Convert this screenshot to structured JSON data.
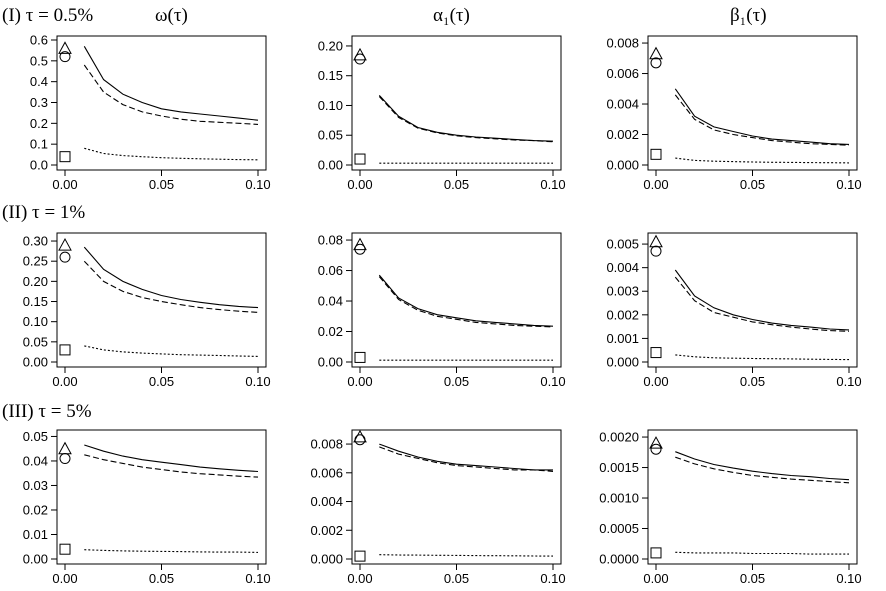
{
  "figure": {
    "row_labels": [
      "(I) τ = 0.5%",
      "(II) τ = 1%",
      "(III) τ = 5%"
    ],
    "column_titles": [
      "ω(τ)",
      "α₁(τ)",
      "β₁(τ)"
    ]
  },
  "chart_data": [
    {
      "type": "line",
      "row": 0,
      "col": 0,
      "title": "ω(τ)",
      "x_ticks": [
        "0.00",
        "0.05",
        "0.10"
      ],
      "xlim": [
        0,
        0.1
      ],
      "y_ticks": [
        "0.0",
        "0.1",
        "0.2",
        "0.3",
        "0.4",
        "0.5",
        "0.6"
      ],
      "ylim": [
        0,
        0.6
      ],
      "x": [
        0.01,
        0.02,
        0.03,
        0.04,
        0.05,
        0.06,
        0.07,
        0.08,
        0.09,
        0.1
      ],
      "series": [
        {
          "name": "solid",
          "style": "solid",
          "values": [
            0.57,
            0.41,
            0.34,
            0.3,
            0.27,
            0.255,
            0.245,
            0.235,
            0.225,
            0.215
          ]
        },
        {
          "name": "dashed",
          "style": "dashed",
          "values": [
            0.48,
            0.35,
            0.29,
            0.255,
            0.235,
            0.22,
            0.21,
            0.205,
            0.2,
            0.195
          ]
        },
        {
          "name": "dotted",
          "style": "dotted",
          "values": [
            0.08,
            0.055,
            0.045,
            0.04,
            0.035,
            0.032,
            0.03,
            0.028,
            0.026,
            0.025
          ]
        }
      ],
      "markers": [
        {
          "shape": "triangle",
          "x": 0,
          "y": 0.56
        },
        {
          "shape": "circle",
          "x": 0,
          "y": 0.52
        },
        {
          "shape": "square",
          "x": 0,
          "y": 0.04
        }
      ]
    },
    {
      "type": "line",
      "row": 0,
      "col": 1,
      "title": "α₁(τ)",
      "x_ticks": [
        "0.00",
        "0.05",
        "0.10"
      ],
      "xlim": [
        0,
        0.1
      ],
      "y_ticks": [
        "0.00",
        "0.05",
        "0.10",
        "0.15",
        "0.20"
      ],
      "ylim": [
        0,
        0.21
      ],
      "x": [
        0.01,
        0.02,
        0.03,
        0.04,
        0.05,
        0.06,
        0.07,
        0.08,
        0.09,
        0.1
      ],
      "series": [
        {
          "name": "solid",
          "style": "solid",
          "values": [
            0.117,
            0.082,
            0.063,
            0.055,
            0.05,
            0.047,
            0.045,
            0.043,
            0.041,
            0.04
          ]
        },
        {
          "name": "dashed",
          "style": "dashed",
          "values": [
            0.115,
            0.08,
            0.062,
            0.054,
            0.049,
            0.046,
            0.044,
            0.042,
            0.041,
            0.039
          ]
        },
        {
          "name": "dotted",
          "style": "dotted",
          "values": [
            0.003,
            0.003,
            0.003,
            0.003,
            0.003,
            0.003,
            0.003,
            0.003,
            0.003,
            0.003
          ]
        }
      ],
      "markers": [
        {
          "shape": "triangle",
          "x": 0,
          "y": 0.185
        },
        {
          "shape": "circle",
          "x": 0,
          "y": 0.178
        },
        {
          "shape": "square",
          "x": 0,
          "y": 0.01
        }
      ]
    },
    {
      "type": "line",
      "row": 0,
      "col": 2,
      "title": "β₁(τ)",
      "x_ticks": [
        "0.00",
        "0.05",
        "0.10"
      ],
      "xlim": [
        0,
        0.1
      ],
      "y_ticks": [
        "0.000",
        "0.002",
        "0.004",
        "0.006",
        "0.008"
      ],
      "ylim": [
        0,
        0.0082
      ],
      "x": [
        0.01,
        0.02,
        0.03,
        0.04,
        0.05,
        0.06,
        0.07,
        0.08,
        0.09,
        0.1
      ],
      "series": [
        {
          "name": "solid",
          "style": "solid",
          "values": [
            0.005,
            0.0032,
            0.0025,
            0.0022,
            0.0019,
            0.0017,
            0.0016,
            0.0015,
            0.0014,
            0.00135
          ]
        },
        {
          "name": "dashed",
          "style": "dashed",
          "values": [
            0.0046,
            0.003,
            0.0023,
            0.002,
            0.0018,
            0.0016,
            0.0015,
            0.0014,
            0.00135,
            0.0013
          ]
        },
        {
          "name": "dotted",
          "style": "dotted",
          "values": [
            0.00045,
            0.0003,
            0.00025,
            0.00022,
            0.0002,
            0.00018,
            0.00017,
            0.00016,
            0.00015,
            0.00014
          ]
        }
      ],
      "markers": [
        {
          "shape": "triangle",
          "x": 0,
          "y": 0.0073
        },
        {
          "shape": "circle",
          "x": 0,
          "y": 0.0067
        },
        {
          "shape": "square",
          "x": 0,
          "y": 0.0007
        }
      ]
    },
    {
      "type": "line",
      "row": 1,
      "col": 0,
      "title": "ω(τ)",
      "x_ticks": [
        "0.00",
        "0.05",
        "0.10"
      ],
      "xlim": [
        0,
        0.1
      ],
      "y_ticks": [
        "0.00",
        "0.05",
        "0.10",
        "0.15",
        "0.20",
        "0.25",
        "0.30"
      ],
      "ylim": [
        0,
        0.31
      ],
      "x": [
        0.01,
        0.02,
        0.03,
        0.04,
        0.05,
        0.06,
        0.07,
        0.08,
        0.09,
        0.1
      ],
      "series": [
        {
          "name": "solid",
          "style": "solid",
          "values": [
            0.285,
            0.23,
            0.2,
            0.18,
            0.165,
            0.155,
            0.148,
            0.142,
            0.138,
            0.135
          ]
        },
        {
          "name": "dashed",
          "style": "dashed",
          "values": [
            0.25,
            0.2,
            0.175,
            0.16,
            0.15,
            0.142,
            0.135,
            0.13,
            0.126,
            0.123
          ]
        },
        {
          "name": "dotted",
          "style": "dotted",
          "values": [
            0.04,
            0.03,
            0.025,
            0.022,
            0.02,
            0.018,
            0.017,
            0.016,
            0.015,
            0.014
          ]
        }
      ],
      "markers": [
        {
          "shape": "triangle",
          "x": 0,
          "y": 0.29
        },
        {
          "shape": "circle",
          "x": 0,
          "y": 0.26
        },
        {
          "shape": "square",
          "x": 0,
          "y": 0.03
        }
      ]
    },
    {
      "type": "line",
      "row": 1,
      "col": 1,
      "title": "α₁(τ)",
      "x_ticks": [
        "0.00",
        "0.05",
        "0.10"
      ],
      "xlim": [
        0,
        0.1
      ],
      "y_ticks": [
        "0.00",
        "0.02",
        "0.04",
        "0.06",
        "0.08"
      ],
      "ylim": [
        0,
        0.082
      ],
      "x": [
        0.01,
        0.02,
        0.03,
        0.04,
        0.05,
        0.06,
        0.07,
        0.08,
        0.09,
        0.1
      ],
      "series": [
        {
          "name": "solid",
          "style": "solid",
          "values": [
            0.057,
            0.042,
            0.035,
            0.031,
            0.029,
            0.027,
            0.026,
            0.025,
            0.024,
            0.0235
          ]
        },
        {
          "name": "dashed",
          "style": "dashed",
          "values": [
            0.056,
            0.041,
            0.034,
            0.03,
            0.028,
            0.026,
            0.025,
            0.024,
            0.0235,
            0.023
          ]
        },
        {
          "name": "dotted",
          "style": "dotted",
          "values": [
            0.0012,
            0.0012,
            0.0012,
            0.0012,
            0.0012,
            0.0012,
            0.0012,
            0.0012,
            0.0012,
            0.0012
          ]
        }
      ],
      "markers": [
        {
          "shape": "triangle",
          "x": 0,
          "y": 0.077
        },
        {
          "shape": "circle",
          "x": 0,
          "y": 0.074
        },
        {
          "shape": "square",
          "x": 0,
          "y": 0.003
        }
      ]
    },
    {
      "type": "line",
      "row": 1,
      "col": 2,
      "title": "β₁(τ)",
      "x_ticks": [
        "0.00",
        "0.05",
        "0.10"
      ],
      "xlim": [
        0,
        0.1
      ],
      "y_ticks": [
        "0.000",
        "0.001",
        "0.002",
        "0.003",
        "0.004",
        "0.005"
      ],
      "ylim": [
        0,
        0.0053
      ],
      "x": [
        0.01,
        0.02,
        0.03,
        0.04,
        0.05,
        0.06,
        0.07,
        0.08,
        0.09,
        0.1
      ],
      "series": [
        {
          "name": "solid",
          "style": "solid",
          "values": [
            0.0039,
            0.0028,
            0.0023,
            0.002,
            0.0018,
            0.00165,
            0.00155,
            0.00148,
            0.0014,
            0.00136
          ]
        },
        {
          "name": "dashed",
          "style": "dashed",
          "values": [
            0.0036,
            0.0026,
            0.0021,
            0.0019,
            0.0017,
            0.00158,
            0.00148,
            0.0014,
            0.00133,
            0.0013
          ]
        },
        {
          "name": "dotted",
          "style": "dotted",
          "values": [
            0.0003,
            0.00022,
            0.00018,
            0.00016,
            0.00015,
            0.00014,
            0.00013,
            0.00012,
            0.00011,
            0.0001
          ]
        }
      ],
      "markers": [
        {
          "shape": "triangle",
          "x": 0,
          "y": 0.0051
        },
        {
          "shape": "circle",
          "x": 0,
          "y": 0.0047
        },
        {
          "shape": "square",
          "x": 0,
          "y": 0.0004
        }
      ]
    },
    {
      "type": "line",
      "row": 2,
      "col": 0,
      "title": "ω(τ)",
      "x_ticks": [
        "0.00",
        "0.05",
        "0.10"
      ],
      "xlim": [
        0,
        0.1
      ],
      "y_ticks": [
        "0.00",
        "0.01",
        "0.02",
        "0.03",
        "0.04",
        "0.05"
      ],
      "ylim": [
        0,
        0.051
      ],
      "x": [
        0.01,
        0.02,
        0.03,
        0.04,
        0.05,
        0.06,
        0.07,
        0.08,
        0.09,
        0.1
      ],
      "series": [
        {
          "name": "solid",
          "style": "solid",
          "values": [
            0.0465,
            0.044,
            0.042,
            0.0405,
            0.0395,
            0.0385,
            0.0375,
            0.0368,
            0.0362,
            0.0357
          ]
        },
        {
          "name": "dashed",
          "style": "dashed",
          "values": [
            0.0425,
            0.0405,
            0.039,
            0.0375,
            0.0365,
            0.0355,
            0.0348,
            0.0343,
            0.0338,
            0.0334
          ]
        },
        {
          "name": "dotted",
          "style": "dotted",
          "values": [
            0.0038,
            0.0035,
            0.0033,
            0.0032,
            0.0031,
            0.003,
            0.0029,
            0.0028,
            0.0028,
            0.0027
          ]
        }
      ],
      "markers": [
        {
          "shape": "triangle",
          "x": 0,
          "y": 0.045
        },
        {
          "shape": "circle",
          "x": 0,
          "y": 0.041
        },
        {
          "shape": "square",
          "x": 0,
          "y": 0.004
        }
      ]
    },
    {
      "type": "line",
      "row": 2,
      "col": 1,
      "title": "α₁(τ)",
      "x_ticks": [
        "0.00",
        "0.05",
        "0.10"
      ],
      "xlim": [
        0,
        0.1
      ],
      "y_ticks": [
        "0.000",
        "0.002",
        "0.004",
        "0.006",
        "0.008"
      ],
      "ylim": [
        0,
        0.0087
      ],
      "x": [
        0.01,
        0.02,
        0.03,
        0.04,
        0.05,
        0.06,
        0.07,
        0.08,
        0.09,
        0.1
      ],
      "series": [
        {
          "name": "solid",
          "style": "solid",
          "values": [
            0.008,
            0.0075,
            0.0071,
            0.0068,
            0.0066,
            0.0065,
            0.0064,
            0.0063,
            0.0062,
            0.0062
          ]
        },
        {
          "name": "dashed",
          "style": "dashed",
          "values": [
            0.0078,
            0.0073,
            0.007,
            0.0067,
            0.0065,
            0.0064,
            0.0063,
            0.0062,
            0.0062,
            0.0061
          ]
        },
        {
          "name": "dotted",
          "style": "dotted",
          "values": [
            0.0003,
            0.00028,
            0.00027,
            0.00026,
            0.00025,
            0.00024,
            0.00023,
            0.00022,
            0.00021,
            0.0002
          ]
        }
      ],
      "markers": [
        {
          "shape": "triangle",
          "x": 0,
          "y": 0.0085
        },
        {
          "shape": "circle",
          "x": 0,
          "y": 0.0083
        },
        {
          "shape": "square",
          "x": 0,
          "y": 0.0002
        }
      ]
    },
    {
      "type": "line",
      "row": 2,
      "col": 2,
      "title": "β₁(τ)",
      "x_ticks": [
        "0.00",
        "0.05",
        "0.10"
      ],
      "xlim": [
        0,
        0.1
      ],
      "y_ticks": [
        "0.0000",
        "0.0005",
        "0.0010",
        "0.0015",
        "0.0020"
      ],
      "ylim": [
        0,
        0.00205
      ],
      "x": [
        0.01,
        0.02,
        0.03,
        0.04,
        0.05,
        0.06,
        0.07,
        0.08,
        0.09,
        0.1
      ],
      "series": [
        {
          "name": "solid",
          "style": "solid",
          "values": [
            0.00176,
            0.00164,
            0.00155,
            0.00149,
            0.00144,
            0.0014,
            0.00137,
            0.00135,
            0.00132,
            0.0013
          ]
        },
        {
          "name": "dashed",
          "style": "dashed",
          "values": [
            0.00167,
            0.00156,
            0.00148,
            0.00142,
            0.00137,
            0.00134,
            0.00131,
            0.00129,
            0.00127,
            0.00125
          ]
        },
        {
          "name": "dotted",
          "style": "dotted",
          "values": [
            0.00011,
            0.0001,
            0.0001,
            0.0001,
            9e-05,
            9e-05,
            9e-05,
            8e-05,
            8e-05,
            8e-05
          ]
        }
      ],
      "markers": [
        {
          "shape": "triangle",
          "x": 0,
          "y": 0.0019
        },
        {
          "shape": "circle",
          "x": 0,
          "y": 0.0018
        },
        {
          "shape": "square",
          "x": 0,
          "y": 0.0001
        }
      ]
    }
  ]
}
